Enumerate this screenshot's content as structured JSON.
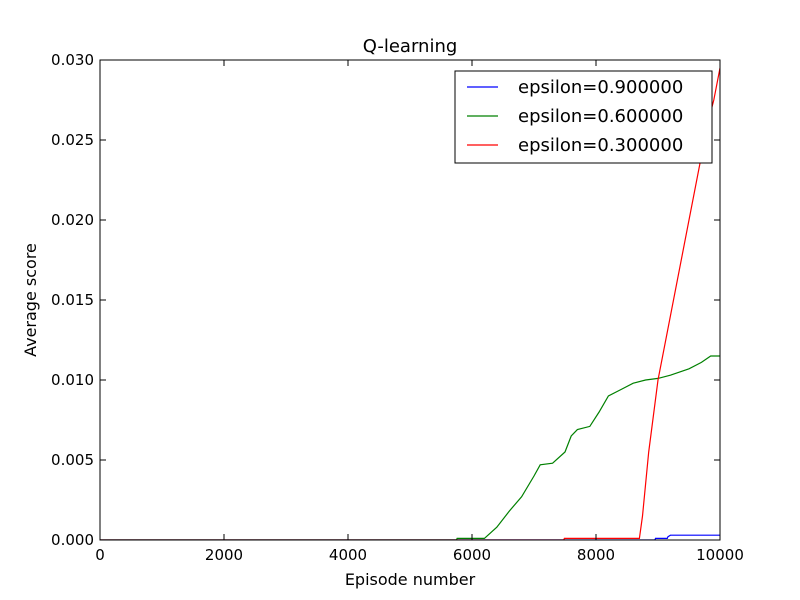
{
  "chart_data": {
    "type": "line",
    "title": "Q-learning",
    "xlabel": "Episode number",
    "ylabel": "Average score",
    "xlim": [
      0,
      10000
    ],
    "ylim": [
      0,
      0.03
    ],
    "x_ticks": [
      0,
      2000,
      4000,
      6000,
      8000,
      10000
    ],
    "x_tick_labels": [
      "0",
      "2000",
      "4000",
      "6000",
      "8000",
      "10000"
    ],
    "y_ticks": [
      0,
      0.005,
      0.01,
      0.015,
      0.02,
      0.025,
      0.03
    ],
    "y_tick_labels": [
      "0.000",
      "0.005",
      "0.010",
      "0.015",
      "0.020",
      "0.025",
      "0.030"
    ],
    "grid": false,
    "legend_position": "top-right",
    "series": [
      {
        "name": "epsilon=0.900000",
        "color": "#0000ff",
        "points": [
          [
            0,
            0
          ],
          [
            8950,
            0
          ],
          [
            8960,
            0.0001
          ],
          [
            9150,
            0.0001
          ],
          [
            9160,
            0.0002
          ],
          [
            9200,
            0.0003
          ],
          [
            10000,
            0.0003
          ]
        ]
      },
      {
        "name": "epsilon=0.600000",
        "color": "#008000",
        "points": [
          [
            0,
            0
          ],
          [
            5750,
            0
          ],
          [
            5760,
            0.0001
          ],
          [
            6200,
            0.0001
          ],
          [
            6400,
            0.0008
          ],
          [
            6600,
            0.0018
          ],
          [
            6800,
            0.0027
          ],
          [
            7000,
            0.004
          ],
          [
            7100,
            0.0047
          ],
          [
            7300,
            0.0048
          ],
          [
            7500,
            0.0055
          ],
          [
            7600,
            0.0065
          ],
          [
            7700,
            0.0069
          ],
          [
            7900,
            0.0071
          ],
          [
            8050,
            0.008
          ],
          [
            8200,
            0.009
          ],
          [
            8400,
            0.0094
          ],
          [
            8600,
            0.0098
          ],
          [
            8800,
            0.01
          ],
          [
            9000,
            0.0101
          ],
          [
            9200,
            0.0103
          ],
          [
            9500,
            0.0107
          ],
          [
            9700,
            0.0111
          ],
          [
            9850,
            0.0115
          ],
          [
            10000,
            0.0115
          ]
        ]
      },
      {
        "name": "epsilon=0.300000",
        "color": "#ff0000",
        "points": [
          [
            0,
            0
          ],
          [
            7480,
            0
          ],
          [
            7490,
            0.0001
          ],
          [
            8700,
            0.0001
          ],
          [
            8750,
            0.0015
          ],
          [
            8850,
            0.0055
          ],
          [
            9000,
            0.01
          ],
          [
            9200,
            0.014
          ],
          [
            9400,
            0.018
          ],
          [
            9600,
            0.022
          ],
          [
            9800,
            0.026
          ],
          [
            9900,
            0.0275
          ],
          [
            10000,
            0.0295
          ]
        ]
      }
    ]
  }
}
